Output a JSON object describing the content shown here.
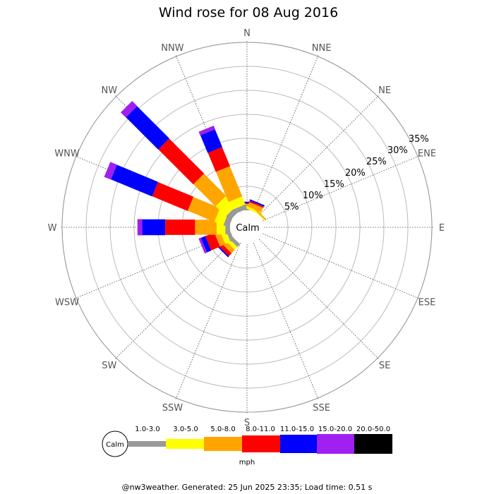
{
  "chart_data": {
    "type": "wind-rose",
    "title": "Wind rose for 08 Aug 2016",
    "directions": [
      "N",
      "NNE",
      "NE",
      "ENE",
      "E",
      "ESE",
      "SE",
      "SSE",
      "S",
      "SSW",
      "SW",
      "WSW",
      "W",
      "WNW",
      "NW",
      "NNW"
    ],
    "ring_percent_labels": [
      "5%",
      "10%",
      "15%",
      "20%",
      "25%",
      "30%",
      "35%"
    ],
    "ring_percents": [
      5,
      10,
      15,
      20,
      25,
      30,
      35
    ],
    "calm_label": "Calm",
    "unit_label": "mph",
    "speed_bins": [
      {
        "label": "",
        "color": "#999999"
      },
      {
        "label": "1.0-3.0",
        "color": "#ffff00"
      },
      {
        "label": "3.0-5.0",
        "color": "#ffa500"
      },
      {
        "label": "5.0-8.0",
        "color": "#ff0000"
      },
      {
        "label": "8.0-11.0",
        "color": "#0000ff"
      },
      {
        "label": "11.0-15.0",
        "color": "#a020f0"
      },
      {
        "label": "15.0-20.0",
        "color": "#000000"
      },
      {
        "label": "20.0-50.0",
        "color": "#000000"
      }
    ],
    "series": [
      {
        "direction": "N",
        "values": [
          0.3,
          0.5,
          0.5,
          0.2,
          0.3,
          0,
          0
        ]
      },
      {
        "direction": "NNE",
        "values": [
          0,
          0.5,
          1.0,
          0.3,
          0.3,
          0,
          0
        ]
      },
      {
        "direction": "NE",
        "values": [
          0,
          0.2,
          0.3,
          0,
          0,
          0,
          0
        ]
      },
      {
        "direction": "ENE",
        "values": [
          0,
          0,
          0,
          0,
          0,
          0,
          0
        ]
      },
      {
        "direction": "E",
        "values": [
          0,
          0,
          0,
          0,
          0,
          0,
          0
        ]
      },
      {
        "direction": "ESE",
        "values": [
          0,
          0,
          0,
          0,
          0,
          0,
          0
        ]
      },
      {
        "direction": "SE",
        "values": [
          0,
          0,
          0,
          0,
          0,
          0,
          0
        ]
      },
      {
        "direction": "SSE",
        "values": [
          0,
          0,
          0,
          0,
          0,
          0,
          0
        ]
      },
      {
        "direction": "S",
        "values": [
          0,
          0,
          0,
          0,
          0,
          0,
          0
        ]
      },
      {
        "direction": "SSW",
        "values": [
          0,
          0,
          0,
          0,
          0,
          0,
          0
        ]
      },
      {
        "direction": "SW",
        "values": [
          0.8,
          0.8,
          1.0,
          0.8,
          0.3,
          0,
          0
        ]
      },
      {
        "direction": "WSW",
        "values": [
          0.8,
          1.2,
          1.2,
          2.0,
          1.0,
          0.5,
          0
        ]
      },
      {
        "direction": "W",
        "values": [
          1.0,
          1.8,
          4.5,
          6.2,
          4.8,
          1.0,
          0
        ]
      },
      {
        "direction": "WNW",
        "values": [
          1.2,
          2.0,
          6.0,
          8.0,
          9.3,
          1.5,
          0
        ]
      },
      {
        "direction": "NW",
        "values": [
          1.2,
          3.0,
          6.5,
          10.3,
          9.5,
          1.5,
          0
        ]
      },
      {
        "direction": "NNW",
        "values": [
          1.0,
          1.8,
          6.8,
          4.3,
          4.0,
          0.8,
          0
        ]
      }
    ]
  },
  "footer": "@nw3weather. Generated: 25 Jun 2025 23:35; Load time: 0.51 s"
}
